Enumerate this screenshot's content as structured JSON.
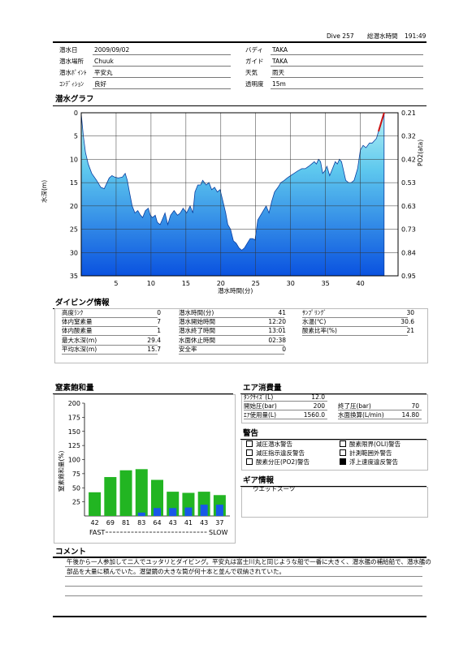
{
  "header": {
    "dive_no": "Dive 257",
    "total_time_label": "総潜水時間",
    "total_time": "191:49"
  },
  "info": {
    "date_label": "潜水日",
    "date": "2009/09/02",
    "place_label": "潜水場所",
    "place": "Chuuk",
    "point_label": "潜水ﾎﾟｲﾝﾄ",
    "point": "平安丸",
    "condition_label": "ｺﾝﾃﾞｨｼｮﾝ",
    "condition": "良好",
    "buddy_label": "バディ",
    "buddy": "TAKA",
    "guide_label": "ガイド",
    "guide": "TAKA",
    "weather_label": "天気",
    "weather": "雨天",
    "visibility_label": "透明度",
    "visibility": "15m"
  },
  "graph": {
    "title": "潜水グラフ",
    "ylabel": "水深(m)",
    "y2label": "PO2(ata)",
    "xlabel": "潜水時間(分)"
  },
  "chart_data": [
    {
      "type": "area",
      "title": "潜水グラフ",
      "xlabel": "潜水時間(分)",
      "ylabel": "水深(m)",
      "y2label": "PO2(ata)",
      "xlim": [
        0,
        45.4
      ],
      "ylim": [
        35,
        0
      ],
      "xticks": [
        5,
        10,
        15,
        20,
        25,
        30,
        35,
        40
      ],
      "yticks": [
        0,
        5,
        10,
        15,
        20,
        25,
        30,
        35
      ],
      "y2ticks": [
        "0.21",
        "0.32",
        "0.42",
        "0.53",
        "0.63",
        "0.73",
        "0.84",
        "0.95"
      ],
      "grid": true,
      "series": [
        {
          "x": [
            0,
            0.3,
            0.6,
            1.0,
            1.5,
            2.2,
            2.8,
            3.3,
            3.7,
            4.0,
            4.4,
            4.8,
            5.3,
            5.9,
            6.3,
            6.6,
            6.9,
            7.3,
            7.7,
            8.1,
            8.5,
            8.8,
            9.2,
            9.6,
            9.9,
            10.2,
            10.6,
            10.9,
            11.3,
            11.6,
            12.0,
            12.4,
            12.8,
            13.3,
            13.8,
            14.2,
            14.6,
            15.1,
            15.6,
            16.0,
            16.3,
            16.7,
            17.1,
            17.4,
            17.9,
            18.3,
            18.7,
            19.1,
            19.5,
            19.9,
            20.3,
            20.7,
            21.0,
            21.4,
            21.8,
            22.2,
            22.6,
            23.0,
            23.4,
            23.8,
            24.2,
            24.6,
            24.9,
            25.3,
            25.7,
            26.1,
            26.5,
            26.9,
            27.3,
            27.7,
            28.2,
            28.6,
            29.1,
            29.5,
            30.0,
            30.5,
            31.0,
            31.6,
            32.1,
            32.6,
            33.0,
            33.4,
            33.7,
            34.0,
            34.3,
            34.6,
            34.9,
            35.2,
            35.6,
            36.0,
            36.4,
            36.7,
            37.0,
            37.3,
            37.6,
            37.9,
            38.3,
            38.7,
            39.1,
            39.6,
            40.0,
            40.4,
            40.8,
            41.3,
            41.7,
            42.0,
            42.3,
            42.6,
            43.0,
            43.4
          ],
          "y": [
            0.3,
            5.0,
            8.5,
            11.0,
            13.0,
            14.5,
            16.0,
            16.3,
            15.0,
            14.0,
            13.5,
            13.8,
            14.0,
            13.8,
            13.0,
            14.5,
            17.0,
            20.0,
            21.5,
            21.0,
            22.0,
            22.5,
            21.0,
            20.5,
            22.0,
            22.5,
            22.0,
            23.5,
            24.0,
            23.0,
            21.5,
            24.0,
            22.0,
            21.0,
            22.0,
            21.5,
            20.5,
            21.5,
            20.0,
            21.5,
            17.0,
            15.5,
            15.5,
            14.5,
            15.5,
            15.0,
            16.5,
            16.0,
            17.0,
            16.5,
            19.0,
            21.5,
            24.0,
            25.0,
            27.5,
            28.0,
            29.0,
            29.5,
            29.0,
            28.0,
            27.0,
            27.0,
            27.3,
            23.0,
            22.0,
            21.0,
            20.0,
            21.5,
            19.0,
            17.0,
            16.0,
            15.0,
            14.5,
            14.0,
            13.5,
            13.0,
            12.5,
            12.0,
            12.0,
            11.5,
            11.0,
            10.5,
            11.0,
            10.0,
            10.5,
            13.0,
            12.5,
            11.5,
            13.5,
            12.0,
            10.5,
            11.0,
            10.0,
            10.5,
            12.5,
            14.5,
            15.0,
            15.0,
            14.5,
            12.0,
            8.0,
            7.0,
            7.5,
            6.5,
            6.5,
            6.0,
            5.5,
            4.0,
            2.0,
            0.0
          ]
        }
      ],
      "ascent_warning_x": [
        42.6,
        43.4
      ],
      "ascent_warning_y": [
        4.0,
        0.0
      ],
      "ascent_warning_color": "#cc1111",
      "fill_top_color": "#b8f2f4",
      "fill_bottom_color": "#0a52e0"
    },
    {
      "type": "bar",
      "title": "窒素飽和量",
      "ylabel": "窒素飽和量(%)",
      "ylim": [
        0,
        200
      ],
      "yticks": [
        25,
        50,
        75,
        100,
        125,
        150,
        175,
        200
      ],
      "categories": [
        "42",
        "69",
        "81",
        "83",
        "64",
        "43",
        "41",
        "43",
        "37"
      ],
      "series": [
        {
          "name": "total",
          "values": [
            42,
            69,
            81,
            83,
            64,
            43,
            41,
            43,
            37
          ],
          "color": "#22b522"
        },
        {
          "name": "current",
          "values": [
            0,
            0,
            0,
            6,
            14,
            14,
            15,
            20,
            20
          ],
          "color": "#1858e8"
        }
      ],
      "fast_label": "FAST",
      "slow_label": "SLOW"
    }
  ],
  "diving": {
    "title": "ダイビング情報",
    "c1": [
      {
        "label": "高度ﾗﾝｸ",
        "value": "0"
      },
      {
        "label": "体内窒素量",
        "value": "7"
      },
      {
        "label": "体内酸素量",
        "value": "1"
      },
      {
        "label": "最大水深(m)",
        "value": "29.4"
      },
      {
        "label": "平均水深(m)",
        "value": "15.7"
      }
    ],
    "c2": [
      {
        "label": "潜水時間(分)",
        "value": "41"
      },
      {
        "label": "潜水開始時間",
        "value": "12:20"
      },
      {
        "label": "潜水終了時間",
        "value": "13:01"
      },
      {
        "label": "水面休止時間",
        "value": "02:38"
      },
      {
        "label": "安全率",
        "value": "0"
      }
    ],
    "c3": [
      {
        "label": "ｻﾝﾌﾟﾘﾝｸﾞ",
        "value": "30"
      },
      {
        "label": "水温(℃)",
        "value": "30.6"
      },
      {
        "label": "酸素比率(%)",
        "value": "21"
      }
    ]
  },
  "nitrogen": {
    "title": "窒素飽和量",
    "ylabel": "窒素飽和量(%)"
  },
  "air": {
    "title": "エア消費量",
    "tank_label": "ﾀﾝｸｻｲｽﾞ(L)",
    "tank": "12.0",
    "start_label": "開始圧(bar)",
    "start": "200",
    "end_label": "終了圧(bar)",
    "end": "70",
    "used_label": "ｴｱ使用量(L)",
    "used": "1560.0",
    "surface_label": "水面換算(L/min)",
    "surface": "14.80"
  },
  "warnings": {
    "title": "警告",
    "items": [
      {
        "label": "減圧潜水警告",
        "checked": false
      },
      {
        "label": "酸素限界(OLI)警告",
        "checked": false
      },
      {
        "label": "減圧指示違反警告",
        "checked": false
      },
      {
        "label": "計測範囲外警告",
        "checked": false
      },
      {
        "label": "酸素分圧(PO2)警告",
        "checked": false
      },
      {
        "label": "浮上速度違反警告",
        "checked": true
      }
    ]
  },
  "gear": {
    "title": "ギア情報",
    "item": "ウエットスーツ"
  },
  "comment": {
    "title": "コメント",
    "line1": "午後から一人参加して二人でユッタリとダイビング。平安丸は富士川丸と同じような船で一番に大きく、潜水艦の補給船で、潜水艦の",
    "line2": "部品を大量に積んでいた。潜望鏡の大きな筒が何十本と並んで収納されていた。"
  }
}
